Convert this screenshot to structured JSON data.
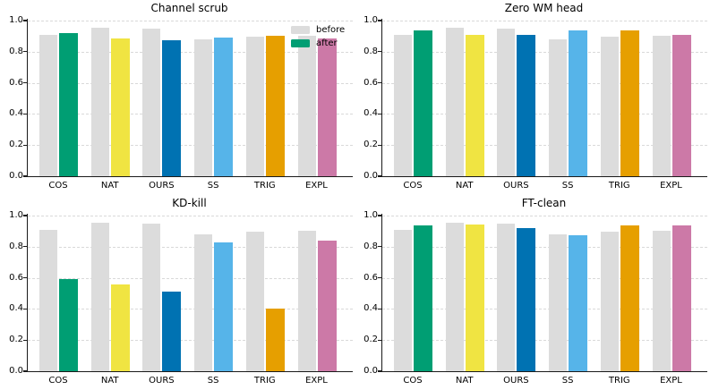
{
  "figure": {
    "background": "#ffffff"
  },
  "palette": {
    "before": "#DCDCDC",
    "after_by_category": [
      "#009E73",
      "#F0E442",
      "#0072B2",
      "#56B4E9",
      "#E69F00",
      "#CC79A7"
    ]
  },
  "legend": {
    "entries": [
      {
        "label": "before",
        "color": "#DCDCDC"
      },
      {
        "label": "after",
        "color": "#009E73"
      }
    ],
    "location": "upper right",
    "frame": false
  },
  "chart_data": [
    {
      "type": "bar",
      "title": "Channel scrub",
      "categories": [
        "COS",
        "NAT",
        "OURS",
        "SS",
        "TRIG",
        "EXPL"
      ],
      "series": [
        {
          "name": "before",
          "values": [
            0.91,
            0.955,
            0.95,
            0.88,
            0.895,
            0.9
          ]
        },
        {
          "name": "after",
          "values": [
            0.92,
            0.885,
            0.875,
            0.89,
            0.9,
            0.885
          ]
        }
      ],
      "ylim": [
        0.0,
        1.0
      ],
      "yticks": [
        "0.0",
        "0.2",
        "0.4",
        "0.6",
        "0.8",
        "1.0"
      ],
      "grid": true,
      "legend": true
    },
    {
      "type": "bar",
      "title": "Zero WM head",
      "categories": [
        "COS",
        "NAT",
        "OURS",
        "SS",
        "TRIG",
        "EXPL"
      ],
      "series": [
        {
          "name": "before",
          "values": [
            0.91,
            0.955,
            0.95,
            0.88,
            0.895,
            0.9
          ]
        },
        {
          "name": "after",
          "values": [
            0.935,
            0.91,
            0.91,
            0.935,
            0.935,
            0.91
          ]
        }
      ],
      "ylim": [
        0.0,
        1.0
      ],
      "yticks": [
        "0.0",
        "0.2",
        "0.4",
        "0.6",
        "0.8",
        "1.0"
      ],
      "grid": true,
      "legend": false
    },
    {
      "type": "bar",
      "title": "KD-kill",
      "categories": [
        "COS",
        "NAT",
        "OURS",
        "SS",
        "TRIG",
        "EXPL"
      ],
      "series": [
        {
          "name": "before",
          "values": [
            0.91,
            0.955,
            0.95,
            0.88,
            0.895,
            0.9
          ]
        },
        {
          "name": "after",
          "values": [
            0.59,
            0.56,
            0.51,
            0.83,
            0.4,
            0.84
          ]
        }
      ],
      "ylim": [
        0.0,
        1.0
      ],
      "yticks": [
        "0.0",
        "0.2",
        "0.4",
        "0.6",
        "0.8",
        "1.0"
      ],
      "grid": true,
      "legend": false
    },
    {
      "type": "bar",
      "title": "FT-clean",
      "categories": [
        "COS",
        "NAT",
        "OURS",
        "SS",
        "TRIG",
        "EXPL"
      ],
      "series": [
        {
          "name": "before",
          "values": [
            0.91,
            0.955,
            0.95,
            0.88,
            0.895,
            0.9
          ]
        },
        {
          "name": "after",
          "values": [
            0.935,
            0.945,
            0.92,
            0.875,
            0.935,
            0.935
          ]
        }
      ],
      "ylim": [
        0.0,
        1.0
      ],
      "yticks": [
        "0.0",
        "0.2",
        "0.4",
        "0.6",
        "0.8",
        "1.0"
      ],
      "grid": true,
      "legend": false
    }
  ]
}
